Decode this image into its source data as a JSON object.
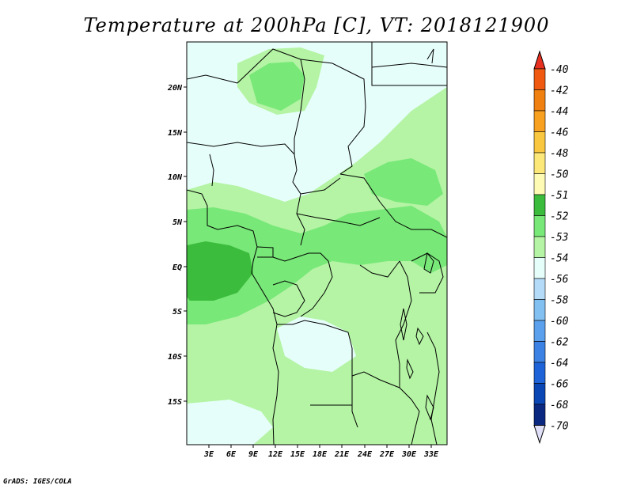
{
  "title": "Temperature at 200hPa [C], VT: 2018121900",
  "credit": "GrADS: IGES/COLA",
  "map": {
    "lat_labels": [
      "20N",
      "15N",
      "10N",
      "5N",
      "EQ",
      "5S",
      "10S",
      "15S"
    ],
    "lon_labels": [
      "3E",
      "6E",
      "9E",
      "12E",
      "15E",
      "18E",
      "21E",
      "24E",
      "27E",
      "30E",
      "33E"
    ]
  },
  "colorbar": {
    "labels": [
      "-40",
      "-42",
      "-44",
      "-46",
      "-48",
      "-50",
      "-51",
      "-52",
      "-53",
      "-54",
      "-56",
      "-58",
      "-60",
      "-62",
      "-64",
      "-66",
      "-68",
      "-70"
    ],
    "colors": [
      "#e83020",
      "#f05a10",
      "#f08010",
      "#f8a020",
      "#fac840",
      "#fce878",
      "#fdfbb4",
      "#3cbc3c",
      "#78e878",
      "#b4f4a4",
      "#e6fefa",
      "#b4dcf8",
      "#82c0f2",
      "#5aa0ec",
      "#3c82e4",
      "#1e64d8",
      "#0a46b4",
      "#0a2880",
      "#e0e0f8"
    ]
  }
}
